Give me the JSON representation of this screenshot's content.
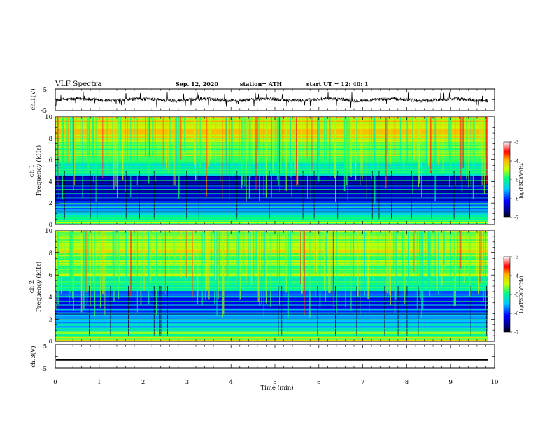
{
  "header": {
    "title": "VLF Spectra",
    "date": "Sep. 12, 2020",
    "station": "station= ATH",
    "start": "start  UT =   12: 40: 1"
  },
  "chart_data": [
    {
      "type": "line",
      "panel": "ch1-waveform",
      "ylabel": "ch.1(V)",
      "ylim": [
        -5,
        5
      ],
      "yticks": [
        "5",
        "-5"
      ],
      "description_values": {
        "baseline": 0,
        "typical_noise": 0.6,
        "spike_max": 3.5
      }
    },
    {
      "type": "heatmap",
      "panel": "ch1-spectrogram",
      "ylabel": "ch.1\nFrequency  (kHz)",
      "ylim": [
        0,
        10
      ],
      "yticks": [
        "0",
        "2",
        "4",
        "6",
        "8",
        "10"
      ],
      "colorbar": {
        "label": "log(PSD)(V²/Hz)",
        "range": [
          -7,
          -3
        ],
        "ticks": [
          "-3",
          "-4",
          "-5",
          "-6",
          "-7"
        ]
      },
      "bands": [
        {
          "from_khz": 0,
          "to_khz": 0.4,
          "level": -4.6
        },
        {
          "from_khz": 0.4,
          "to_khz": 1.0,
          "level": -5.2
        },
        {
          "from_khz": 1.0,
          "to_khz": 2.2,
          "level": -5.7
        },
        {
          "from_khz": 2.2,
          "to_khz": 4.6,
          "level": -6.4
        },
        {
          "from_khz": 4.6,
          "to_khz": 6.0,
          "level": -5.1
        },
        {
          "from_khz": 6.0,
          "to_khz": 8.0,
          "level": -4.6
        },
        {
          "from_khz": 8.0,
          "to_khz": 10.0,
          "level": -4.2
        }
      ]
    },
    {
      "type": "heatmap",
      "panel": "ch2-spectrogram",
      "ylabel": "ch.2\nFrequency  (kHz)",
      "ylim": [
        0,
        10
      ],
      "yticks": [
        "0",
        "2",
        "4",
        "6",
        "8",
        "10"
      ],
      "colorbar": {
        "label": "log(PSD)(V²/Hz)",
        "range": [
          -7,
          -3
        ],
        "ticks": [
          "-3",
          "-4",
          "-5",
          "-6",
          "-7"
        ]
      },
      "bands": [
        {
          "from_khz": 0,
          "to_khz": 0.4,
          "level": -4.5
        },
        {
          "from_khz": 0.4,
          "to_khz": 1.2,
          "level": -4.9
        },
        {
          "from_khz": 1.2,
          "to_khz": 2.4,
          "level": -5.5
        },
        {
          "from_khz": 2.4,
          "to_khz": 4.6,
          "level": -6.1
        },
        {
          "from_khz": 4.6,
          "to_khz": 6.0,
          "level": -5.0
        },
        {
          "from_khz": 6.0,
          "to_khz": 8.0,
          "level": -4.7
        },
        {
          "from_khz": 8.0,
          "to_khz": 10.0,
          "level": -4.5
        }
      ]
    },
    {
      "type": "line",
      "panel": "ch3-waveform",
      "ylabel": "ch.3(V)",
      "ylim": [
        -5,
        5
      ],
      "yticks": [
        "5",
        "-5"
      ],
      "description_values": {
        "baseline": -1.5,
        "band_half_width": 0.4
      }
    }
  ],
  "xaxis": {
    "label": "Time  (min)",
    "range": [
      0,
      10
    ],
    "ticks": [
      "0",
      "1",
      "2",
      "3",
      "4",
      "5",
      "6",
      "7",
      "8",
      "9",
      "10"
    ],
    "data_end": 9.85
  }
}
